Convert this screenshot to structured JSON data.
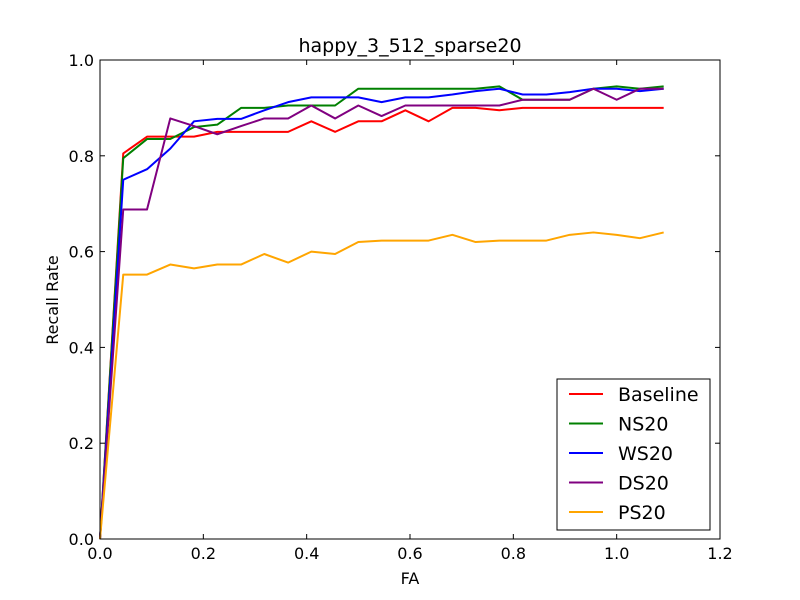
{
  "chart_data": {
    "type": "line",
    "title": "happy_3_512_sparse20",
    "xlabel": "FA",
    "ylabel": "Recall Rate",
    "xlim": [
      0.0,
      1.2
    ],
    "ylim": [
      0.0,
      1.0
    ],
    "xticks": [
      0.0,
      0.2,
      0.4,
      0.6,
      0.8,
      1.0,
      1.2
    ],
    "yticks": [
      0.0,
      0.2,
      0.4,
      0.6,
      0.8,
      1.0
    ],
    "xtick_labels": [
      "0.0",
      "0.2",
      "0.4",
      "0.6",
      "0.8",
      "1.0",
      "1.2"
    ],
    "ytick_labels": [
      "0.0",
      "0.2",
      "0.4",
      "0.6",
      "0.8",
      "1.0"
    ],
    "legend_position": "lower-right",
    "x": [
      0.0,
      0.045,
      0.091,
      0.136,
      0.182,
      0.227,
      0.273,
      0.318,
      0.364,
      0.409,
      0.455,
      0.5,
      0.545,
      0.591,
      0.636,
      0.682,
      0.727,
      0.773,
      0.818,
      0.864,
      0.909,
      0.955,
      1.0,
      1.045,
      1.091
    ],
    "series": [
      {
        "name": "Baseline",
        "color": "#ff0000",
        "values": [
          0.0,
          0.805,
          0.84,
          0.84,
          0.84,
          0.85,
          0.85,
          0.85,
          0.85,
          0.872,
          0.85,
          0.872,
          0.872,
          0.895,
          0.872,
          0.9,
          0.9,
          0.895,
          0.9,
          0.9,
          0.9,
          0.9,
          0.9,
          0.9,
          0.9
        ]
      },
      {
        "name": "NS20",
        "color": "#008000",
        "values": [
          0.0,
          0.795,
          0.835,
          0.835,
          0.86,
          0.865,
          0.9,
          0.9,
          0.905,
          0.905,
          0.905,
          0.94,
          0.94,
          0.94,
          0.94,
          0.94,
          0.94,
          0.945,
          0.917,
          0.917,
          0.917,
          0.94,
          0.945,
          0.94,
          0.945
        ]
      },
      {
        "name": "WS20",
        "color": "#0000ff",
        "values": [
          0.0,
          0.75,
          0.772,
          0.815,
          0.872,
          0.877,
          0.877,
          0.895,
          0.912,
          0.922,
          0.922,
          0.922,
          0.912,
          0.922,
          0.922,
          0.928,
          0.935,
          0.94,
          0.928,
          0.928,
          0.933,
          0.94,
          0.94,
          0.935,
          0.94
        ]
      },
      {
        "name": "DS20",
        "color": "#800080",
        "values": [
          0.0,
          0.688,
          0.688,
          0.878,
          0.862,
          0.845,
          0.862,
          0.878,
          0.878,
          0.905,
          0.878,
          0.905,
          0.883,
          0.905,
          0.905,
          0.905,
          0.905,
          0.905,
          0.917,
          0.917,
          0.917,
          0.94,
          0.917,
          0.94,
          0.94
        ]
      },
      {
        "name": "PS20",
        "color": "#ffa500",
        "values": [
          0.0,
          0.552,
          0.552,
          0.573,
          0.565,
          0.573,
          0.573,
          0.595,
          0.577,
          0.6,
          0.595,
          0.62,
          0.623,
          0.623,
          0.623,
          0.635,
          0.62,
          0.623,
          0.623,
          0.623,
          0.635,
          0.64,
          0.635,
          0.628,
          0.64
        ]
      }
    ]
  }
}
